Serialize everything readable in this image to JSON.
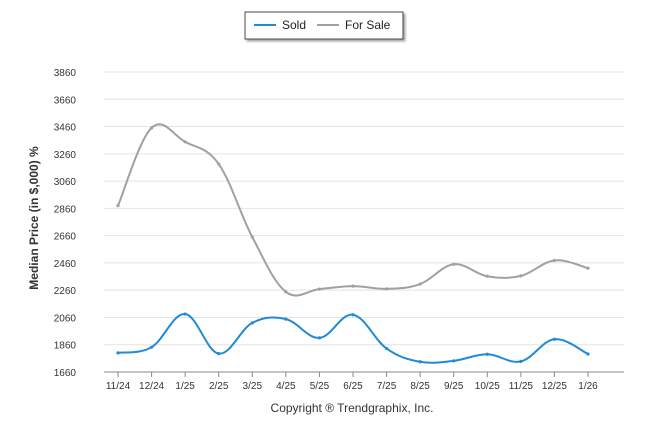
{
  "chart_data": {
    "type": "line",
    "categories": [
      "11/24",
      "12/24",
      "1/25",
      "2/25",
      "3/25",
      "4/25",
      "5/25",
      "6/25",
      "7/25",
      "8/25",
      "9/25",
      "10/25",
      "11/25",
      "12/25",
      "1/26"
    ],
    "series": [
      {
        "name": "Sold",
        "color": "#1f8ad6",
        "values": [
          1800,
          1842,
          2085,
          1795,
          2020,
          2048,
          1910,
          2080,
          1832,
          1735,
          1742,
          1790,
          1738,
          1900,
          1792
        ]
      },
      {
        "name": "For Sale",
        "color": "#a0a0a0",
        "values": [
          2880,
          3450,
          3348,
          3185,
          2650,
          2248,
          2268,
          2290,
          2270,
          2305,
          2450,
          2362,
          2365,
          2478,
          2422
        ]
      }
    ],
    "ylabel": "Median Price (in $,000) %",
    "yticks": [
      1660,
      1860,
      2060,
      2260,
      2460,
      2660,
      2860,
      3060,
      3260,
      3460,
      3660,
      3860
    ],
    "ylim": [
      1660,
      3860
    ],
    "grid": true,
    "legend_position": "top-center",
    "footer": "Copyright ® Trendgraphix, Inc."
  }
}
